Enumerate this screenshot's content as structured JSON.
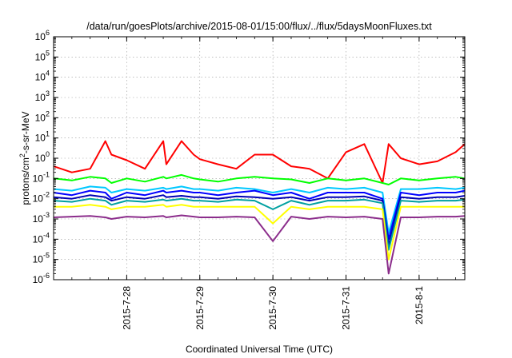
{
  "chart_data": {
    "type": "line",
    "title": "/data/run/goesPlots/archive/2015-08-01/15:00/flux/../flux/5daysMoonFluxes.txt",
    "xlabel": "Coordinated Universal Time (UTC)",
    "ylabel_main": "protons/cm",
    "ylabel_sup": "2",
    "ylabel_tail": "-s-sr-MeV",
    "yscale": "log",
    "ylim": [
      1e-06,
      1000000.0
    ],
    "xlim": [
      "2015-07-27T00:00",
      "2015-08-01T15:00"
    ],
    "grid": true,
    "y_ticks": [
      {
        "base": "10",
        "exp": "-6"
      },
      {
        "base": "10",
        "exp": "-5"
      },
      {
        "base": "10",
        "exp": "-4"
      },
      {
        "base": "10",
        "exp": "-3"
      },
      {
        "base": "10",
        "exp": "-2"
      },
      {
        "base": "10",
        "exp": "-1"
      },
      {
        "base": "10",
        "exp": "0"
      },
      {
        "base": "10",
        "exp": "1"
      },
      {
        "base": "10",
        "exp": "2"
      },
      {
        "base": "10",
        "exp": "3"
      },
      {
        "base": "10",
        "exp": "4"
      },
      {
        "base": "10",
        "exp": "5"
      },
      {
        "base": "10",
        "exp": "6"
      }
    ],
    "x_tick_labels": [
      "2015-7-28",
      "2015-7-29",
      "2015-7-30",
      "2015-7-31",
      "2015-8-1"
    ],
    "x": [
      "2015-07-27T00:00",
      "2015-07-27T06:00",
      "2015-07-27T12:00",
      "2015-07-27T17:00",
      "2015-07-27T19:00",
      "2015-07-28T00:00",
      "2015-07-28T06:00",
      "2015-07-28T12:00",
      "2015-07-28T13:00",
      "2015-07-28T18:00",
      "2015-07-28T22:00",
      "2015-07-29T00:00",
      "2015-07-29T06:00",
      "2015-07-29T12:00",
      "2015-07-29T18:00",
      "2015-07-30T00:00",
      "2015-07-30T06:00",
      "2015-07-30T12:00",
      "2015-07-30T18:00",
      "2015-07-31T00:00",
      "2015-07-31T06:00",
      "2015-07-31T12:00",
      "2015-07-31T14:00",
      "2015-07-31T18:00",
      "2015-08-01T00:00",
      "2015-08-01T06:00",
      "2015-08-01T12:00",
      "2015-08-01T15:00"
    ],
    "series": [
      {
        "color": "#ff0000",
        "values": [
          0.4,
          0.2,
          0.3,
          7,
          1.5,
          0.8,
          0.3,
          7,
          0.5,
          7,
          1.5,
          0.9,
          0.5,
          0.3,
          1.5,
          1.5,
          0.4,
          0.3,
          0.1,
          2,
          5,
          0.06,
          5,
          1,
          0.5,
          0.7,
          2,
          5
        ]
      },
      {
        "color": "#00ff00",
        "values": [
          0.1,
          0.08,
          0.12,
          0.1,
          0.06,
          0.1,
          0.07,
          0.12,
          0.1,
          0.15,
          0.1,
          0.09,
          0.07,
          0.1,
          0.12,
          0.1,
          0.09,
          0.06,
          0.1,
          0.08,
          0.1,
          0.06,
          0.05,
          0.1,
          0.08,
          0.1,
          0.12,
          0.1
        ]
      },
      {
        "color": "#00c8ff",
        "values": [
          0.03,
          0.025,
          0.04,
          0.035,
          0.02,
          0.03,
          0.025,
          0.035,
          0.03,
          0.04,
          0.03,
          0.03,
          0.025,
          0.035,
          0.03,
          0.02,
          0.03,
          0.02,
          0.035,
          0.03,
          0.035,
          0.02,
          0.0002,
          0.03,
          0.03,
          0.035,
          0.03,
          0.035
        ]
      },
      {
        "color": "#0000ff",
        "values": [
          0.02,
          0.015,
          0.025,
          0.02,
          0.01,
          0.02,
          0.015,
          0.025,
          0.02,
          0.025,
          0.02,
          0.02,
          0.015,
          0.02,
          0.025,
          0.015,
          0.02,
          0.01,
          0.02,
          0.02,
          0.02,
          0.01,
          0.0001,
          0.02,
          0.015,
          0.02,
          0.02,
          0.025
        ]
      },
      {
        "color": "#0000b4",
        "values": [
          0.012,
          0.01,
          0.015,
          0.012,
          0.008,
          0.012,
          0.01,
          0.015,
          0.012,
          0.014,
          0.012,
          0.012,
          0.01,
          0.013,
          0.012,
          0.01,
          0.012,
          0.008,
          0.012,
          0.012,
          0.013,
          0.008,
          5e-05,
          0.012,
          0.01,
          0.012,
          0.012,
          0.014
        ]
      },
      {
        "color": "#00a0a0",
        "values": [
          0.008,
          0.007,
          0.01,
          0.008,
          0.005,
          0.008,
          0.007,
          0.009,
          0.008,
          0.01,
          0.008,
          0.008,
          0.007,
          0.009,
          0.008,
          0.003,
          0.008,
          0.005,
          0.008,
          0.008,
          0.009,
          0.006,
          3e-05,
          0.008,
          0.007,
          0.008,
          0.008,
          0.009
        ]
      },
      {
        "color": "#ffff00",
        "values": [
          0.004,
          0.004,
          0.005,
          0.004,
          0.003,
          0.004,
          0.004,
          0.005,
          0.004,
          0.005,
          0.004,
          0.004,
          0.004,
          0.004,
          0.004,
          0.0006,
          0.004,
          0.003,
          0.004,
          0.004,
          0.004,
          0.003,
          1e-05,
          0.004,
          0.004,
          0.004,
          0.004,
          0.004
        ]
      },
      {
        "color": "#8b2d8b",
        "values": [
          0.0012,
          0.0013,
          0.0014,
          0.0012,
          0.001,
          0.0013,
          0.0012,
          0.0014,
          0.0012,
          0.0015,
          0.0013,
          0.0012,
          0.0012,
          0.0013,
          0.0012,
          8e-05,
          0.0013,
          0.001,
          0.0013,
          0.0012,
          0.0013,
          0.001,
          2e-06,
          0.0012,
          0.0012,
          0.0013,
          0.0013,
          0.0014
        ]
      }
    ]
  }
}
